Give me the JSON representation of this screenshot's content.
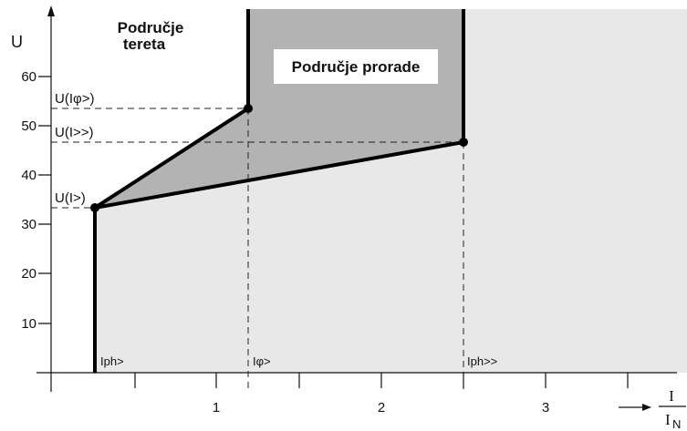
{
  "y_axis": {
    "label": "U",
    "ticks": [
      "10",
      "20",
      "30",
      "40",
      "50",
      "60"
    ]
  },
  "x_axis": {
    "ticks": [
      "1",
      "2",
      "3"
    ],
    "unit_numerator": "I",
    "unit_denominator": "I",
    "unit_subscript": "N"
  },
  "regions": {
    "load": [
      "Područje",
      "tereta"
    ],
    "trip": "Područje prorade"
  },
  "levels": [
    "U(Iφ>)",
    "U(I>>)",
    "U(I>)"
  ],
  "thresholds": [
    "Iph>",
    "Iφ>",
    "Iph>>"
  ]
}
